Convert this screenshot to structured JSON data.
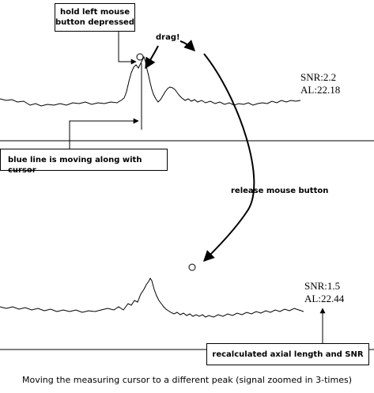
{
  "callouts": {
    "hold": "hold left mouse button depressed",
    "drag": "drag!",
    "blue_line": "blue line is moving along with cursor",
    "release": "release mouse button",
    "recalculated": "recalculated axial length and SNR"
  },
  "top_measure": {
    "snr": "SNR:2.2",
    "al": "AL:22.18"
  },
  "bottom_measure": {
    "snr": "SNR:1.5",
    "al": "AL:22.44"
  },
  "caption": "Moving the measuring cursor to a different peak (signal zoomed in 3-times)"
}
